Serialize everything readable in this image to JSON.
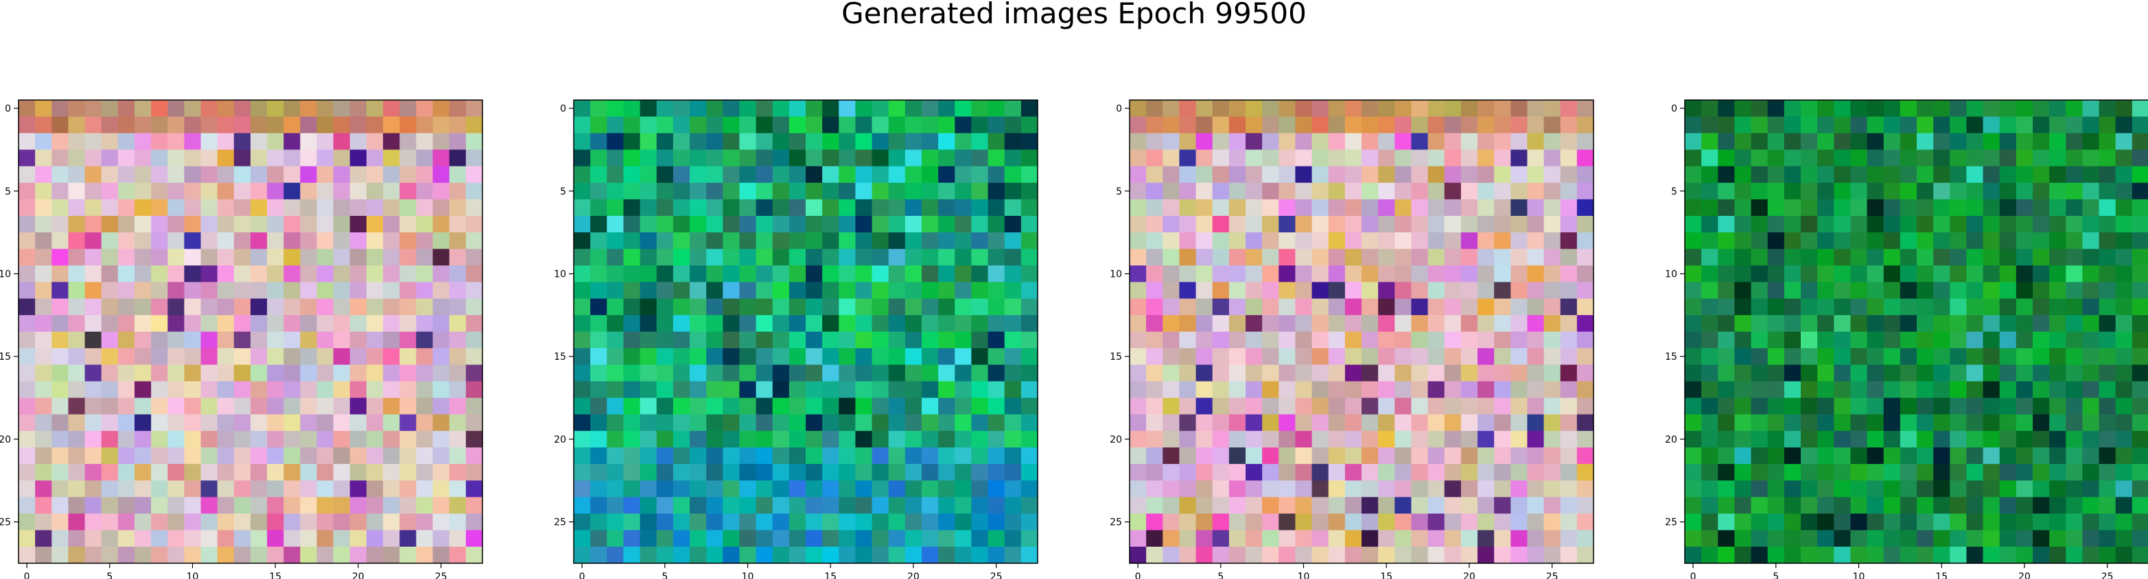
{
  "title": "Generated images Epoch 99500",
  "chart_data": [
    {
      "type": "heatmap",
      "grid": [
        28,
        28
      ],
      "palette": "pastel",
      "seed": 11,
      "xticks": [
        "0",
        "5",
        "10",
        "15",
        "20",
        "25"
      ],
      "yticks": [
        "0",
        "5",
        "10",
        "15",
        "20",
        "25"
      ],
      "xlim": [
        -0.5,
        27.5
      ],
      "ylim": [
        27.5,
        -0.5
      ]
    },
    {
      "type": "heatmap",
      "grid": [
        28,
        28
      ],
      "palette": "green",
      "seed": 23,
      "xticks": [
        "0",
        "5",
        "10",
        "15",
        "20",
        "25"
      ],
      "yticks": [
        "0",
        "5",
        "10",
        "15",
        "20",
        "25"
      ],
      "xlim": [
        -0.5,
        27.5
      ],
      "ylim": [
        27.5,
        -0.5
      ]
    },
    {
      "type": "heatmap",
      "grid": [
        28,
        28
      ],
      "palette": "pastel",
      "seed": 37,
      "xticks": [
        "0",
        "5",
        "10",
        "15",
        "20",
        "25"
      ],
      "yticks": [
        "0",
        "5",
        "10",
        "15",
        "20",
        "25"
      ],
      "xlim": [
        -0.5,
        27.5
      ],
      "ylim": [
        27.5,
        -0.5
      ]
    },
    {
      "type": "heatmap",
      "grid": [
        28,
        28
      ],
      "palette": "darkgreen",
      "seed": 53,
      "xticks": [
        "0",
        "5",
        "10",
        "15",
        "20",
        "25"
      ],
      "yticks": [
        "0",
        "5",
        "10",
        "15",
        "20",
        "25"
      ],
      "xlim": [
        -0.5,
        27.5
      ],
      "ylim": [
        27.5,
        -0.5
      ]
    }
  ]
}
